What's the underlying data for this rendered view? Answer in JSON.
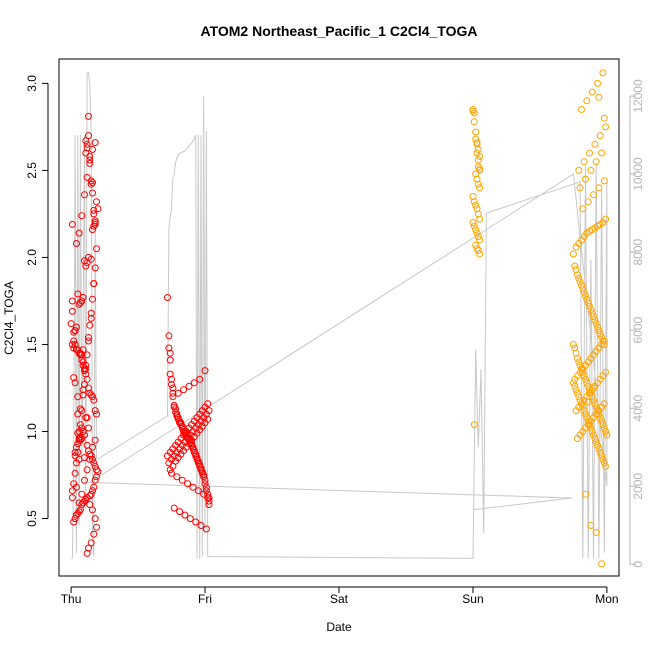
{
  "chart_data": {
    "type": "scatter",
    "title": "ATOM2 Northeast_Pacific_1 C2Cl4_TOGA",
    "xlabel": "Date",
    "ylabel": "C2Cl4_TOGA",
    "x_ticks": [
      "Thu",
      "Fri",
      "Sat",
      "Sun",
      "Mon"
    ],
    "xlim_days": [
      -0.09,
      4.09
    ],
    "ylim": [
      0.17,
      3.14
    ],
    "y_ticks": [
      "0.5",
      "1.0",
      "1.5",
      "2.0",
      "2.5",
      "3.0"
    ],
    "y2_ticks": [
      "0",
      "2000",
      "4000",
      "6000",
      "8000",
      "10000",
      "12000"
    ],
    "y2lim": [
      -300,
      12950
    ],
    "grid": false,
    "colors": {
      "series_1": "#ff0000",
      "series_2": "#ffa500",
      "altitude_line": "#c8c8c8",
      "axis": "#000000",
      "right_axis": "#b4b4b4"
    },
    "series": [
      {
        "color_key": "series_1",
        "marker": "open-circle",
        "x_days": [
          0.01,
          0.01,
          0.01,
          0.0,
          0.02,
          0.02,
          0.03,
          0.01,
          0.03,
          0.04,
          0.03,
          0.05,
          0.05,
          0.06,
          0.06,
          0.07,
          0.08,
          0.07,
          0.08,
          0.09,
          0.09,
          0.1,
          0.1,
          0.11,
          0.11,
          0.12,
          0.12,
          0.13,
          0.13,
          0.14,
          0.14,
          0.15,
          0.15,
          0.16,
          0.16,
          0.17,
          0.17,
          0.18,
          0.18,
          0.19,
          0.18,
          0.17,
          0.16,
          0.15,
          0.13,
          0.12,
          0.11,
          0.1,
          0.09,
          0.08,
          0.07,
          0.06,
          0.05,
          0.04,
          0.03,
          0.02,
          0.02,
          0.03,
          0.04,
          0.05,
          0.06,
          0.07,
          0.08,
          0.09,
          0.1,
          0.11,
          0.12,
          0.13,
          0.14,
          0.15,
          0.16,
          0.17,
          0.18,
          0.19,
          0.11,
          0.12,
          0.13,
          0.09,
          0.1,
          0.07,
          0.08,
          0.06,
          0.05,
          0.12,
          0.13,
          0.14,
          0.15,
          0.16,
          0.17,
          0.18,
          0.19,
          0.2,
          0.19,
          0.18,
          0.17,
          0.16,
          0.15,
          0.14,
          0.12,
          0.11,
          0.1,
          0.09,
          0.08,
          0.07,
          0.06,
          0.05,
          0.04,
          0.03,
          0.02,
          0.01,
          0.01,
          0.02,
          0.03,
          0.04,
          0.05,
          0.06,
          0.07,
          0.08,
          0.09,
          0.1,
          0.11,
          0.12,
          0.13,
          0.14,
          0.15,
          0.16,
          0.17,
          0.18,
          0.04,
          0.06,
          0.08,
          0.1,
          0.12,
          0.14,
          0.16,
          0.18,
          0.2,
          0.19,
          0.17,
          0.15,
          0.13,
          0.11,
          0.09,
          0.07,
          0.05,
          0.03,
          0.04,
          0.06,
          0.08,
          0.1,
          0.12,
          0.14,
          0.16,
          0.18,
          0.13,
          0.15,
          0.17,
          0.19,
          0.18,
          0.16,
          0.14,
          0.12
        ],
        "y": [
          1.75,
          1.69,
          1.5,
          1.62,
          1.48,
          1.31,
          1.28,
          2.19,
          1.58,
          0.91,
          0.88,
          1.2,
          1.1,
          0.84,
          1.0,
          1.45,
          1.44,
          0.95,
          1.02,
          1.38,
          1.47,
          0.85,
          1.35,
          2.6,
          2.67,
          2.65,
          2.63,
          2.81,
          2.7,
          2.58,
          2.56,
          2.44,
          2.42,
          2.37,
          2.43,
          2.25,
          2.27,
          2.2,
          2.21,
          2.32,
          2.19,
          2.18,
          2.16,
          1.99,
          2.0,
          1.97,
          1.95,
          1.98,
          1.77,
          1.75,
          1.74,
          1.73,
          1.79,
          1.6,
          1.58,
          1.57,
          1.52,
          1.5,
          1.47,
          1.47,
          1.45,
          1.44,
          1.41,
          1.4,
          1.36,
          1.33,
          1.3,
          1.25,
          1.22,
          1.21,
          1.2,
          1.18,
          1.12,
          1.1,
          1.08,
          1.08,
          1.02,
          1.0,
          0.98,
          0.97,
          0.96,
          0.95,
          0.93,
          0.92,
          0.89,
          0.87,
          0.86,
          0.84,
          0.82,
          0.8,
          0.78,
          0.77,
          0.74,
          0.72,
          0.68,
          0.66,
          0.64,
          0.63,
          0.62,
          0.61,
          0.6,
          0.59,
          0.58,
          0.55,
          0.54,
          0.53,
          0.52,
          0.5,
          0.48,
          0.62,
          0.66,
          0.7,
          0.76,
          0.82,
          0.88,
          0.96,
          1.04,
          1.12,
          1.21,
          1.27,
          1.36,
          1.44,
          1.52,
          1.61,
          1.68,
          1.76,
          1.85,
          1.94,
          2.08,
          2.14,
          2.24,
          2.36,
          2.46,
          2.54,
          2.62,
          2.66,
          2.28,
          2.05,
          1.85,
          1.65,
          1.54,
          1.38,
          1.24,
          1.13,
          0.99,
          0.86,
          0.68,
          0.59,
          0.64,
          0.72,
          0.78,
          0.84,
          0.91,
          0.95,
          0.33,
          0.36,
          0.41,
          0.45,
          0.5,
          0.55,
          0.58,
          0.3
        ]
      },
      {
        "color_key": "series_1",
        "marker": "open-circle",
        "x_days": [
          0.72,
          0.73,
          0.73,
          0.74,
          0.74,
          0.74,
          0.75,
          0.75,
          0.76,
          0.76,
          0.77,
          0.77,
          0.78,
          0.78,
          0.79,
          0.79,
          0.8,
          0.8,
          0.81,
          0.81,
          0.82,
          0.82,
          0.83,
          0.83,
          0.84,
          0.84,
          0.85,
          0.85,
          0.86,
          0.86,
          0.87,
          0.87,
          0.88,
          0.88,
          0.89,
          0.89,
          0.9,
          0.9,
          0.91,
          0.91,
          0.92,
          0.92,
          0.93,
          0.93,
          0.94,
          0.94,
          0.95,
          0.95,
          0.96,
          0.96,
          0.97,
          0.97,
          0.98,
          0.98,
          0.99,
          0.99,
          1.0,
          1.0,
          1.01,
          1.01,
          1.02,
          1.02,
          1.03,
          1.03,
          0.72,
          0.74,
          0.76,
          0.78,
          0.8,
          0.82,
          0.84,
          0.86,
          0.88,
          0.9,
          0.92,
          0.94,
          0.96,
          0.98,
          1.0,
          1.02,
          0.73,
          0.75,
          0.77,
          0.79,
          0.81,
          0.83,
          0.85,
          0.87,
          0.89,
          0.91,
          0.93,
          0.95,
          0.97,
          0.99,
          1.01,
          1.03,
          0.74,
          0.76,
          0.78,
          0.8,
          0.82,
          0.84,
          0.86,
          0.88,
          0.9,
          0.92,
          0.94,
          0.96,
          0.98,
          1.0,
          1.02,
          0.75,
          0.79,
          0.83,
          0.87,
          0.91,
          0.95,
          0.99,
          1.03,
          0.77,
          0.81,
          0.85,
          0.89,
          0.93,
          0.97,
          1.01,
          0.76,
          0.8,
          0.84,
          0.88,
          0.92,
          0.96,
          1.0
        ],
        "y": [
          1.77,
          1.55,
          1.48,
          1.45,
          1.41,
          1.33,
          1.3,
          1.27,
          1.25,
          1.22,
          1.15,
          1.14,
          1.13,
          1.11,
          1.1,
          1.09,
          1.08,
          1.07,
          1.06,
          1.05,
          1.05,
          1.04,
          1.03,
          1.02,
          1.01,
          1.0,
          1.0,
          0.99,
          0.99,
          0.98,
          0.97,
          0.97,
          0.96,
          0.96,
          0.95,
          0.94,
          0.93,
          0.92,
          0.91,
          0.9,
          0.89,
          0.88,
          0.87,
          0.86,
          0.85,
          0.84,
          0.83,
          0.82,
          0.81,
          0.8,
          0.79,
          0.78,
          0.77,
          0.76,
          0.75,
          0.74,
          0.72,
          0.7,
          0.68,
          0.66,
          0.64,
          0.62,
          0.6,
          0.58,
          0.86,
          0.88,
          0.9,
          0.92,
          0.94,
          0.96,
          0.98,
          1.0,
          1.02,
          1.04,
          1.06,
          1.08,
          1.1,
          1.12,
          1.14,
          1.16,
          0.82,
          0.84,
          0.86,
          0.88,
          0.9,
          0.92,
          0.94,
          0.96,
          0.98,
          1.0,
          1.02,
          1.04,
          1.06,
          1.08,
          1.1,
          1.12,
          0.78,
          0.8,
          0.83,
          0.85,
          0.87,
          0.89,
          0.91,
          0.93,
          0.95,
          0.97,
          0.99,
          1.01,
          1.03,
          1.05,
          1.07,
          0.76,
          0.74,
          0.72,
          0.7,
          0.68,
          0.66,
          0.64,
          0.62,
          0.56,
          0.54,
          0.52,
          0.5,
          0.48,
          0.46,
          0.44,
          1.2,
          1.22,
          1.24,
          1.26,
          1.28,
          1.3,
          1.35
        ]
      },
      {
        "color_key": "series_2",
        "marker": "open-circle",
        "x_days": [
          3.0,
          3.0,
          3.01,
          3.01,
          3.02,
          3.02,
          3.03,
          3.03,
          3.04,
          3.04,
          3.05,
          3.05,
          3.0,
          3.01,
          3.02,
          3.03,
          3.04,
          3.05,
          3.0,
          3.01,
          3.02,
          3.03,
          3.04,
          3.05,
          3.02,
          3.03,
          3.04,
          3.05,
          3.03,
          3.04,
          3.05,
          3.02,
          3.03,
          3.04,
          3.05,
          3.01
        ],
        "y": [
          2.85,
          2.84,
          2.83,
          2.78,
          2.72,
          2.68,
          2.66,
          2.6,
          2.56,
          2.52,
          2.51,
          2.5,
          2.35,
          2.32,
          2.3,
          2.28,
          2.25,
          2.22,
          2.2,
          2.18,
          2.16,
          2.14,
          2.12,
          2.1,
          2.07,
          2.05,
          2.04,
          2.02,
          2.65,
          2.62,
          2.58,
          2.48,
          2.45,
          2.42,
          2.4,
          1.04
        ]
      },
      {
        "color_key": "series_2",
        "marker": "open-circle",
        "x_days": [
          3.75,
          3.76,
          3.77,
          3.78,
          3.79,
          3.8,
          3.81,
          3.82,
          3.83,
          3.84,
          3.85,
          3.86,
          3.87,
          3.88,
          3.89,
          3.9,
          3.91,
          3.92,
          3.93,
          3.94,
          3.95,
          3.96,
          3.97,
          3.98,
          3.99,
          4.0,
          3.75,
          3.76,
          3.77,
          3.78,
          3.79,
          3.8,
          3.81,
          3.82,
          3.83,
          3.84,
          3.85,
          3.86,
          3.87,
          3.88,
          3.89,
          3.9,
          3.91,
          3.92,
          3.93,
          3.94,
          3.95,
          3.96,
          3.97,
          3.98,
          3.99,
          3.76,
          3.77,
          3.78,
          3.79,
          3.8,
          3.81,
          3.82,
          3.83,
          3.84,
          3.85,
          3.86,
          3.87,
          3.88,
          3.89,
          3.9,
          3.91,
          3.92,
          3.93,
          3.94,
          3.95,
          3.96,
          3.97,
          3.98,
          3.75,
          3.77,
          3.79,
          3.81,
          3.83,
          3.85,
          3.87,
          3.89,
          3.91,
          3.93,
          3.95,
          3.97,
          3.99,
          3.76,
          3.78,
          3.8,
          3.82,
          3.84,
          3.86,
          3.88,
          3.9,
          3.92,
          3.94,
          3.96,
          3.98,
          3.77,
          3.79,
          3.81,
          3.83,
          3.85,
          3.87,
          3.89,
          3.91,
          3.93,
          3.95,
          3.97,
          3.99,
          3.78,
          3.8,
          3.82,
          3.84,
          3.86,
          3.88,
          3.9,
          3.92,
          3.94,
          3.96,
          3.98,
          3.79,
          3.83,
          3.87,
          3.91,
          3.95,
          3.99,
          3.8,
          3.84,
          3.88,
          3.92,
          3.96,
          3.81,
          3.85,
          3.89,
          3.93,
          3.97,
          3.82,
          3.86,
          3.9,
          3.94,
          3.98,
          3.84,
          3.88,
          3.92,
          3.96,
          3.86,
          3.9,
          3.94,
          3.98
        ],
        "y": [
          1.5,
          1.48,
          1.45,
          1.42,
          1.4,
          1.38,
          1.36,
          1.34,
          1.32,
          1.3,
          1.28,
          1.26,
          1.24,
          1.22,
          1.2,
          1.18,
          1.16,
          1.14,
          1.12,
          1.1,
          1.08,
          1.06,
          1.04,
          1.02,
          1.0,
          0.98,
          1.28,
          1.26,
          1.24,
          1.22,
          1.2,
          1.18,
          1.16,
          1.14,
          1.12,
          1.1,
          1.08,
          1.06,
          1.04,
          1.02,
          1.0,
          0.98,
          0.96,
          0.94,
          0.92,
          0.9,
          0.88,
          0.86,
          0.84,
          0.82,
          0.8,
          1.95,
          1.93,
          1.9,
          1.88,
          1.86,
          1.84,
          1.82,
          1.8,
          1.78,
          1.76,
          1.74,
          1.72,
          1.7,
          1.68,
          1.66,
          1.64,
          1.62,
          1.6,
          1.58,
          1.56,
          1.54,
          1.52,
          1.5,
          2.02,
          2.06,
          2.08,
          2.1,
          2.12,
          2.14,
          2.15,
          2.16,
          2.17,
          2.18,
          2.19,
          2.2,
          2.22,
          1.3,
          1.32,
          1.34,
          1.36,
          1.38,
          1.4,
          1.42,
          1.44,
          1.46,
          1.48,
          1.5,
          1.52,
          1.12,
          1.14,
          1.16,
          1.18,
          1.2,
          1.22,
          1.24,
          1.26,
          1.28,
          1.3,
          1.32,
          1.34,
          0.96,
          0.98,
          1.0,
          1.02,
          1.04,
          1.06,
          1.08,
          1.1,
          1.12,
          1.14,
          1.16,
          2.5,
          2.55,
          2.6,
          2.65,
          2.7,
          2.75,
          2.4,
          2.45,
          2.5,
          2.55,
          2.6,
          2.85,
          2.9,
          2.95,
          3.0,
          3.06,
          2.28,
          2.32,
          2.36,
          2.4,
          2.44,
          0.64,
          0.46,
          0.42,
          0.24,
          1.17,
          1.25,
          2.92,
          2.8
        ]
      }
    ],
    "altitude_line": {
      "axis": "y2",
      "x_days": [
        0.0,
        0.01,
        0.02,
        0.03,
        0.04,
        0.05,
        0.06,
        0.07,
        0.08,
        0.09,
        0.1,
        0.11,
        0.12,
        0.13,
        0.14,
        0.15,
        0.16,
        0.17,
        0.18,
        0.19,
        0.2,
        0.72,
        0.73,
        0.74,
        0.75,
        0.76,
        0.77,
        0.78,
        0.8,
        0.85,
        0.9,
        0.92,
        0.93,
        0.94,
        0.95,
        0.96,
        0.97,
        0.98,
        0.99,
        1.0,
        1.01,
        1.02,
        3.0,
        3.02,
        3.04,
        3.06,
        3.08,
        3.1,
        3.8,
        3.82,
        3.84,
        3.86,
        3.88,
        3.9,
        3.92,
        3.94,
        3.96,
        3.98,
        4.0,
        4.0,
        3.75,
        0.14,
        3.74,
        3.0
      ],
      "y": [
        150,
        150,
        2500,
        11000,
        300,
        11000,
        1000,
        11000,
        2600,
        6000,
        11000,
        1500,
        12600,
        12600,
        12300,
        11000,
        800,
        200,
        8700,
        2700,
        2700,
        3800,
        8600,
        8900,
        9100,
        9900,
        10000,
        10300,
        10500,
        10600,
        10800,
        10900,
        11000,
        150,
        11000,
        150,
        11000,
        200,
        12000,
        800,
        11100,
        200,
        150,
        5500,
        3000,
        5000,
        800,
        9000,
        9800,
        150,
        10200,
        150,
        7800,
        150,
        10300,
        150,
        9600,
        300,
        9800,
        2000,
        10000,
        2100,
        1700,
        1400
      ]
    }
  }
}
